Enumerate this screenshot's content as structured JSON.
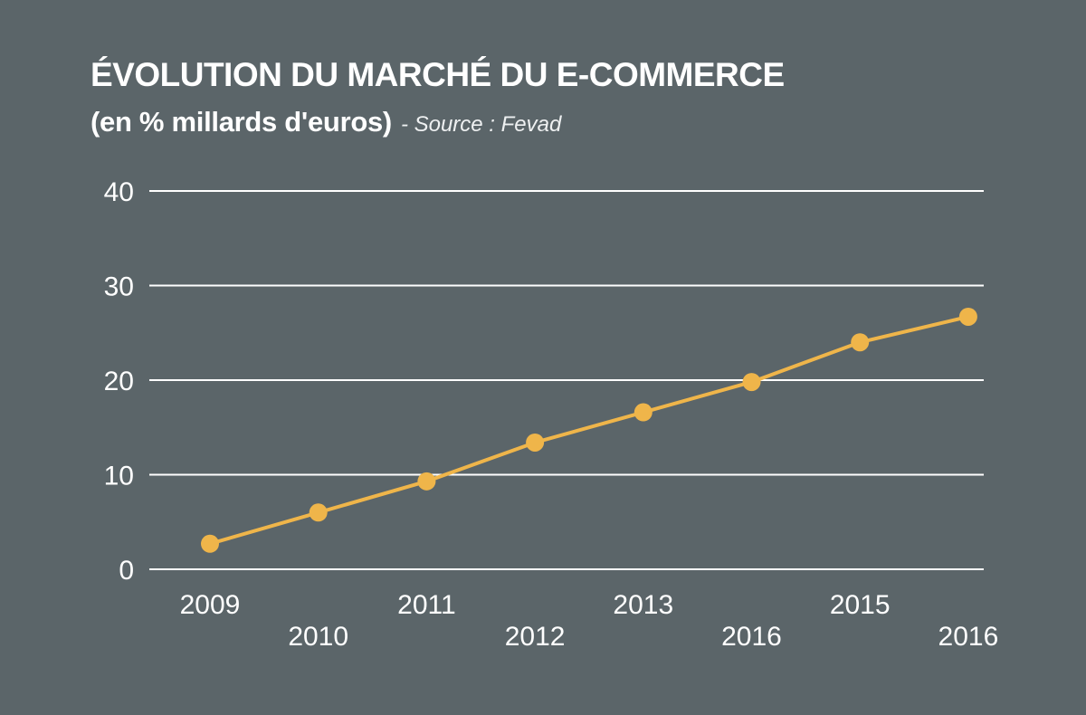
{
  "title": "ÉVOLUTION DU MARCHÉ DU E-COMMERCE",
  "subtitle": "(en % millards d'euros)",
  "source": "- Source : Fevad",
  "colors": {
    "background": "#5b6569",
    "line": "#efb54a",
    "grid": "#ffffff",
    "text": "#ffffff"
  },
  "chart_data": {
    "type": "line",
    "title": "ÉVOLUTION DU MARCHÉ DU E-COMMERCE",
    "subtitle": "(en % millards d'euros)",
    "categories": [
      "2009",
      "2010",
      "2011",
      "2012",
      "2013",
      "2016",
      "2015",
      "2016"
    ],
    "series": [
      {
        "values": [
          2.7,
          6.0,
          9.3,
          13.4,
          16.6,
          19.8,
          24.0,
          26.7
        ]
      }
    ],
    "yticks": [
      "0",
      "10",
      "20",
      "30",
      "40"
    ],
    "ylim": [
      0,
      40
    ],
    "grid": true,
    "legend": "none",
    "xlabel": "",
    "ylabel": ""
  }
}
